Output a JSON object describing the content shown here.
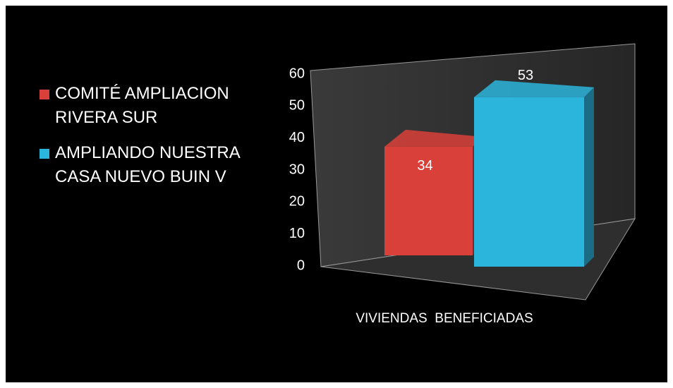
{
  "chart_data": {
    "type": "bar3d",
    "categories": [
      "VIVIENDAS  BENEFICIADAS"
    ],
    "series": [
      {
        "name": "COMITÉ AMPLIACION RIVERA SUR",
        "color": "#d9403a",
        "values": [
          34
        ]
      },
      {
        "name": "AMPLIANDO NUESTRA CASA NUEVO BUIN V",
        "color": "#2bb5dc",
        "values": [
          53
        ]
      }
    ],
    "ylim": [
      0,
      60
    ],
    "yticks": [
      0,
      10,
      20,
      30,
      40,
      50,
      60
    ],
    "legend": "left",
    "data_labels": true
  }
}
